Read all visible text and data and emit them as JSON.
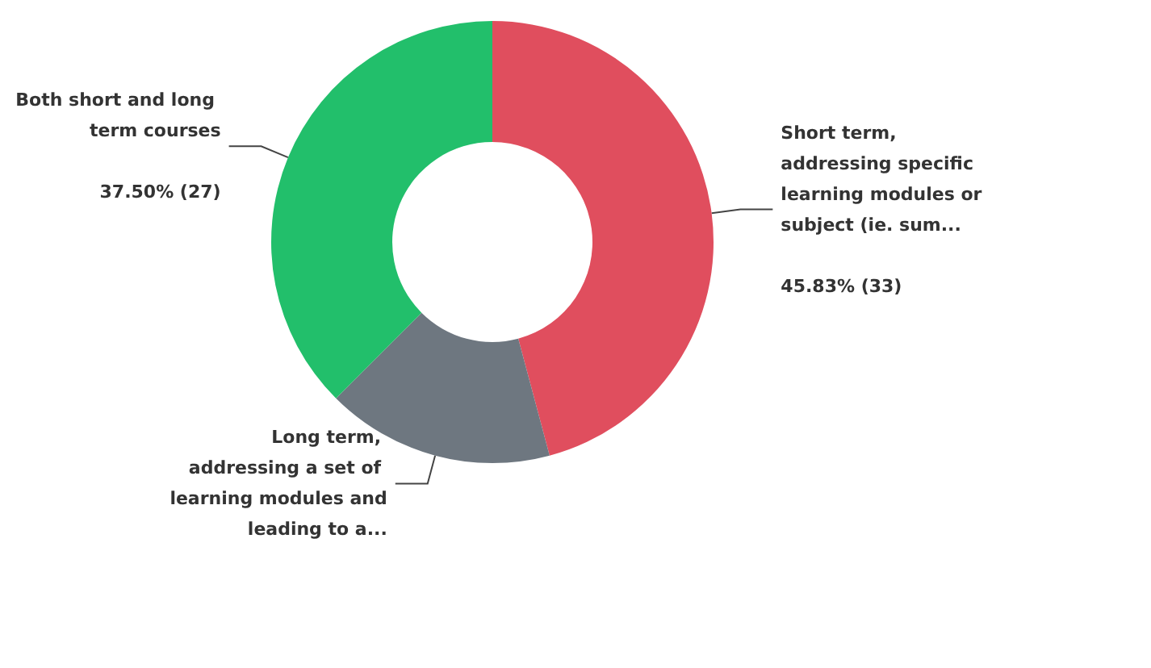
{
  "chart_data": {
    "type": "donut",
    "categories": [
      "Short term, addressing specific learning modules or subject (ie. sum...",
      "Long term, addressing a set of learning modules and leading to a...",
      "Both short and long term courses"
    ],
    "values": [
      33,
      12,
      27
    ],
    "value_labels": [
      "45.83% (33)",
      null,
      "37.50% (27)"
    ],
    "colors": [
      "#e04e5e",
      "#6e7780",
      "#22bf6b"
    ],
    "legend": false
  }
}
